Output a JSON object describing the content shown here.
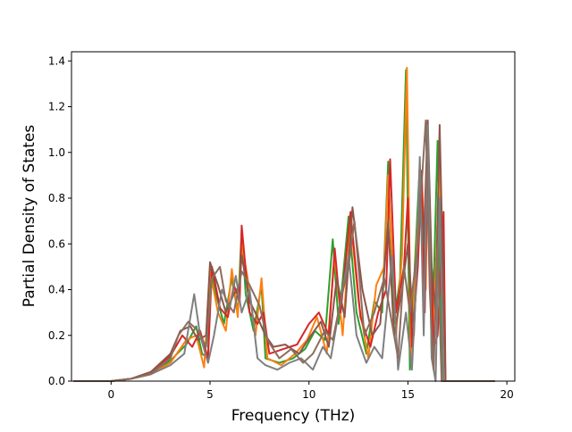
{
  "chart_data": {
    "type": "line",
    "title": "",
    "xlabel": "Frequency (THz)",
    "ylabel": "Partial Density of States",
    "xlim": [
      -2.0,
      20.4
    ],
    "ylim": [
      0.0,
      1.44
    ],
    "xticks": [
      0,
      5,
      10,
      15,
      20
    ],
    "yticks": [
      0.0,
      0.2,
      0.4,
      0.6,
      0.8,
      1.0,
      1.2,
      1.4
    ],
    "grid": false,
    "legend": "none",
    "series": [
      {
        "color": "#2ca02c",
        "points": [
          [
            -1.9,
            0
          ],
          [
            0,
            0
          ],
          [
            1,
            0.01
          ],
          [
            2,
            0.03
          ],
          [
            3,
            0.09
          ],
          [
            3.8,
            0.16
          ],
          [
            4.3,
            0.24
          ],
          [
            4.6,
            0.12
          ],
          [
            4.9,
            0.1
          ],
          [
            5.0,
            0.5
          ],
          [
            5.3,
            0.38
          ],
          [
            5.7,
            0.25
          ],
          [
            6.1,
            0.45
          ],
          [
            6.4,
            0.3
          ],
          [
            6.6,
            0.66
          ],
          [
            6.8,
            0.38
          ],
          [
            7.2,
            0.22
          ],
          [
            7.6,
            0.42
          ],
          [
            7.8,
            0.1
          ],
          [
            8.5,
            0.08
          ],
          [
            9.2,
            0.1
          ],
          [
            9.8,
            0.14
          ],
          [
            10.3,
            0.22
          ],
          [
            10.8,
            0.18
          ],
          [
            11.2,
            0.62
          ],
          [
            11.5,
            0.25
          ],
          [
            12.0,
            0.72
          ],
          [
            12.4,
            0.3
          ],
          [
            12.9,
            0.12
          ],
          [
            13.3,
            0.35
          ],
          [
            13.7,
            0.3
          ],
          [
            14.0,
            0.96
          ],
          [
            14.3,
            0.25
          ],
          [
            14.6,
            0.45
          ],
          [
            14.9,
            1.36
          ],
          [
            15.1,
            0.05
          ],
          [
            15.4,
            0.6
          ],
          [
            15.6,
            0.95
          ],
          [
            15.8,
            0.5
          ],
          [
            16.0,
            1.1
          ],
          [
            16.2,
            0.1
          ],
          [
            16.5,
            1.05
          ],
          [
            16.7,
            0.1
          ],
          [
            16.8,
            0.0
          ],
          [
            19.4,
            0.0
          ]
        ]
      },
      {
        "color": "#ff7f0e",
        "points": [
          [
            -1.9,
            0
          ],
          [
            0,
            0
          ],
          [
            1,
            0.01
          ],
          [
            2,
            0.03
          ],
          [
            3,
            0.08
          ],
          [
            3.8,
            0.18
          ],
          [
            4.3,
            0.2
          ],
          [
            4.7,
            0.06
          ],
          [
            5.0,
            0.48
          ],
          [
            5.4,
            0.3
          ],
          [
            5.8,
            0.22
          ],
          [
            6.1,
            0.49
          ],
          [
            6.4,
            0.28
          ],
          [
            6.6,
            0.6
          ],
          [
            6.9,
            0.45
          ],
          [
            7.3,
            0.2
          ],
          [
            7.6,
            0.45
          ],
          [
            7.9,
            0.1
          ],
          [
            8.6,
            0.07
          ],
          [
            9.3,
            0.12
          ],
          [
            9.9,
            0.18
          ],
          [
            10.4,
            0.28
          ],
          [
            10.9,
            0.12
          ],
          [
            11.3,
            0.55
          ],
          [
            11.7,
            0.2
          ],
          [
            12.1,
            0.7
          ],
          [
            12.5,
            0.35
          ],
          [
            13.0,
            0.1
          ],
          [
            13.4,
            0.42
          ],
          [
            13.8,
            0.5
          ],
          [
            14.0,
            0.9
          ],
          [
            14.4,
            0.2
          ],
          [
            14.7,
            0.55
          ],
          [
            14.95,
            1.37
          ],
          [
            15.15,
            0.1
          ],
          [
            15.5,
            0.7
          ],
          [
            15.7,
            0.9
          ],
          [
            15.9,
            0.4
          ],
          [
            16.0,
            1.0
          ],
          [
            16.3,
            0.2
          ],
          [
            16.6,
            1.0
          ],
          [
            16.8,
            0.0
          ],
          [
            19.4,
            0.0
          ]
        ]
      },
      {
        "color": "#d62728",
        "points": [
          [
            -1.9,
            0
          ],
          [
            0,
            0
          ],
          [
            1,
            0.01
          ],
          [
            2,
            0.04
          ],
          [
            3,
            0.11
          ],
          [
            3.6,
            0.2
          ],
          [
            4.1,
            0.15
          ],
          [
            4.5,
            0.22
          ],
          [
            4.9,
            0.1
          ],
          [
            5.1,
            0.5
          ],
          [
            5.5,
            0.32
          ],
          [
            5.9,
            0.28
          ],
          [
            6.2,
            0.42
          ],
          [
            6.5,
            0.35
          ],
          [
            6.6,
            0.68
          ],
          [
            7.0,
            0.3
          ],
          [
            7.4,
            0.25
          ],
          [
            7.7,
            0.3
          ],
          [
            8.0,
            0.12
          ],
          [
            8.7,
            0.14
          ],
          [
            9.4,
            0.16
          ],
          [
            10.0,
            0.25
          ],
          [
            10.5,
            0.3
          ],
          [
            11.0,
            0.2
          ],
          [
            11.3,
            0.58
          ],
          [
            11.6,
            0.3
          ],
          [
            12.1,
            0.74
          ],
          [
            12.6,
            0.28
          ],
          [
            13.1,
            0.15
          ],
          [
            13.5,
            0.3
          ],
          [
            13.9,
            0.4
          ],
          [
            14.1,
            0.97
          ],
          [
            14.4,
            0.3
          ],
          [
            14.8,
            0.5
          ],
          [
            15.0,
            0.8
          ],
          [
            15.2,
            0.15
          ],
          [
            15.5,
            0.5
          ],
          [
            15.7,
            0.92
          ],
          [
            15.85,
            0.3
          ],
          [
            16.0,
            1.02
          ],
          [
            16.3,
            0.15
          ],
          [
            16.5,
            0.2
          ],
          [
            16.8,
            0.74
          ],
          [
            16.9,
            0.0
          ],
          [
            19.4,
            0.0
          ]
        ]
      },
      {
        "color": "#8c564b",
        "points": [
          [
            -1.9,
            0
          ],
          [
            0,
            0
          ],
          [
            1,
            0.01
          ],
          [
            2,
            0.04
          ],
          [
            3,
            0.12
          ],
          [
            3.5,
            0.22
          ],
          [
            4.0,
            0.24
          ],
          [
            4.4,
            0.18
          ],
          [
            4.8,
            0.2
          ],
          [
            5.0,
            0.52
          ],
          [
            5.4,
            0.42
          ],
          [
            5.8,
            0.3
          ],
          [
            6.2,
            0.38
          ],
          [
            6.5,
            0.42
          ],
          [
            6.6,
            0.55
          ],
          [
            7.0,
            0.35
          ],
          [
            7.4,
            0.28
          ],
          [
            7.8,
            0.2
          ],
          [
            8.2,
            0.15
          ],
          [
            8.8,
            0.16
          ],
          [
            9.5,
            0.12
          ],
          [
            10.1,
            0.2
          ],
          [
            10.6,
            0.26
          ],
          [
            11.0,
            0.15
          ],
          [
            11.4,
            0.45
          ],
          [
            11.8,
            0.28
          ],
          [
            12.2,
            0.76
          ],
          [
            12.7,
            0.4
          ],
          [
            13.2,
            0.2
          ],
          [
            13.6,
            0.25
          ],
          [
            14.0,
            0.7
          ],
          [
            14.3,
            0.2
          ],
          [
            14.7,
            0.4
          ],
          [
            15.0,
            0.6
          ],
          [
            15.3,
            0.2
          ],
          [
            15.6,
            0.85
          ],
          [
            15.8,
            0.6
          ],
          [
            16.0,
            1.14
          ],
          [
            16.2,
            0.5
          ],
          [
            16.4,
            0.3
          ],
          [
            16.6,
            1.12
          ],
          [
            16.9,
            0.0
          ],
          [
            19.4,
            0.0
          ]
        ]
      },
      {
        "color": "#7f7f7f",
        "points": [
          [
            -1.9,
            0
          ],
          [
            0,
            0
          ],
          [
            1,
            0.01
          ],
          [
            2,
            0.03
          ],
          [
            3,
            0.07
          ],
          [
            3.7,
            0.12
          ],
          [
            4.2,
            0.38
          ],
          [
            4.5,
            0.2
          ],
          [
            4.9,
            0.08
          ],
          [
            5.2,
            0.2
          ],
          [
            5.6,
            0.4
          ],
          [
            6.0,
            0.32
          ],
          [
            6.3,
            0.46
          ],
          [
            6.6,
            0.3
          ],
          [
            7.0,
            0.4
          ],
          [
            7.4,
            0.1
          ],
          [
            7.8,
            0.07
          ],
          [
            8.4,
            0.05
          ],
          [
            9.0,
            0.08
          ],
          [
            9.6,
            0.1
          ],
          [
            10.2,
            0.05
          ],
          [
            10.7,
            0.15
          ],
          [
            11.1,
            0.1
          ],
          [
            11.5,
            0.3
          ],
          [
            12.0,
            0.55
          ],
          [
            12.4,
            0.2
          ],
          [
            12.9,
            0.08
          ],
          [
            13.3,
            0.15
          ],
          [
            13.7,
            0.1
          ],
          [
            14.2,
            0.55
          ],
          [
            14.5,
            0.05
          ],
          [
            14.9,
            0.3
          ],
          [
            15.2,
            0.05
          ],
          [
            15.4,
            0.4
          ],
          [
            15.6,
            0.98
          ],
          [
            15.8,
            0.2
          ],
          [
            16.0,
            1.12
          ],
          [
            16.2,
            0.1
          ],
          [
            16.4,
            0.0
          ],
          [
            16.6,
            0.8
          ],
          [
            16.8,
            0.0
          ],
          [
            19.4,
            0.0
          ]
        ]
      },
      {
        "color": "#8c6d5f",
        "points": [
          [
            -1.9,
            0
          ],
          [
            0,
            0
          ],
          [
            1,
            0.01
          ],
          [
            2,
            0.03
          ],
          [
            3,
            0.1
          ],
          [
            3.4,
            0.2
          ],
          [
            3.9,
            0.26
          ],
          [
            4.4,
            0.22
          ],
          [
            4.8,
            0.15
          ],
          [
            5.1,
            0.45
          ],
          [
            5.5,
            0.5
          ],
          [
            5.8,
            0.35
          ],
          [
            6.2,
            0.3
          ],
          [
            6.6,
            0.48
          ],
          [
            7.0,
            0.42
          ],
          [
            7.5,
            0.33
          ],
          [
            7.9,
            0.18
          ],
          [
            8.5,
            0.1
          ],
          [
            9.1,
            0.14
          ],
          [
            9.7,
            0.08
          ],
          [
            10.2,
            0.12
          ],
          [
            10.8,
            0.22
          ],
          [
            11.2,
            0.18
          ],
          [
            11.6,
            0.35
          ],
          [
            12.0,
            0.5
          ],
          [
            12.3,
            0.7
          ],
          [
            12.8,
            0.2
          ],
          [
            13.3,
            0.3
          ],
          [
            13.8,
            0.45
          ],
          [
            14.1,
            0.3
          ],
          [
            14.5,
            0.1
          ],
          [
            14.8,
            0.5
          ],
          [
            15.1,
            0.3
          ],
          [
            15.5,
            0.6
          ],
          [
            15.9,
            1.14
          ],
          [
            16.1,
            0.4
          ],
          [
            16.3,
            0.05
          ],
          [
            16.5,
            0.6
          ],
          [
            16.7,
            0.0
          ],
          [
            19.4,
            0.0
          ]
        ]
      }
    ]
  },
  "axis_text": {
    "xlabel": "Frequency (THz)",
    "ylabel": "Partial Density of States",
    "xtick_labels": [
      "0",
      "5",
      "10",
      "15",
      "20"
    ],
    "ytick_labels": [
      "0.0",
      "0.2",
      "0.4",
      "0.6",
      "0.8",
      "1.0",
      "1.2",
      "1.4"
    ]
  }
}
